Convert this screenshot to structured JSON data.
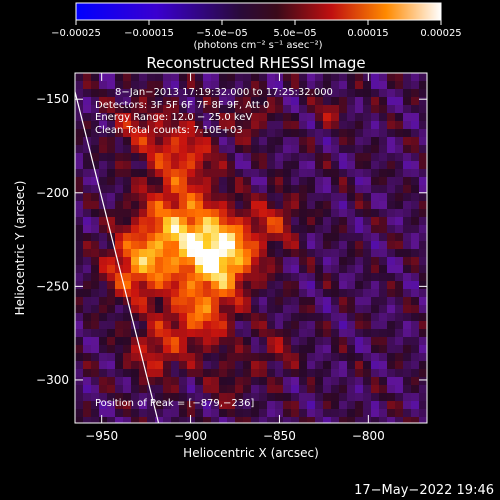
{
  "chart_data": {
    "type": "heatmap",
    "title": "Reconstructed RHESSI Image",
    "xlabel": "Heliocentric X (arcsec)",
    "ylabel": "Heliocentric Y (arcsec)",
    "xlim": [
      -965,
      -767
    ],
    "ylim": [
      -323,
      -136
    ],
    "x_ticks": [
      -950,
      -900,
      -850,
      -800
    ],
    "y_ticks": [
      -150,
      -200,
      -250,
      -300
    ],
    "x_tick_labels": [
      "−950",
      "−900",
      "−850",
      "−800"
    ],
    "y_tick_labels": [
      "−150",
      "−200",
      "−250",
      "−300"
    ],
    "colorbar": {
      "range": [
        -0.00025,
        0.00025
      ],
      "ticks": [
        -0.00025,
        -0.00015,
        -5e-05,
        5e-05,
        0.00015,
        0.00025
      ],
      "tick_labels": [
        "−0.00025",
        "−0.00015",
        "−5.0e−05",
        "5.0e−05",
        "0.00015",
        "0.00025"
      ],
      "unit_label": "(photons cm⁻² s⁻¹ asec⁻²)"
    },
    "annotations": [
      "8−Jan−2013 17:19:32.000 to 17:25:32.000",
      "Detectors: 3F 5F 6F 7F 8F 9F, Att 0",
      "Energy Range: 12.0 − 25.0 keV",
      "Clean     Total counts: 7.10E+03"
    ],
    "peak_label": "Position of Peak = [−879,−236]",
    "peak_position": [
      -879,
      -236
    ],
    "limb_line": [
      [
        -965,
        -146
      ],
      [
        -918,
        -323
      ]
    ],
    "sources": [
      {
        "x": -883,
        "y": -233,
        "amplitude": 0.00025,
        "sigma": 14
      },
      {
        "x": -908,
        "y": -218,
        "amplitude": 0.00017,
        "sigma": 16
      },
      {
        "x": -930,
        "y": -240,
        "amplitude": 0.00016,
        "sigma": 13
      },
      {
        "x": -905,
        "y": -180,
        "amplitude": 0.00012,
        "sigma": 13
      },
      {
        "x": -895,
        "y": -265,
        "amplitude": 0.00014,
        "sigma": 13
      },
      {
        "x": -920,
        "y": -285,
        "amplitude": 0.0001,
        "sigma": 11
      },
      {
        "x": -852,
        "y": -215,
        "amplitude": 9e-05,
        "sigma": 10
      },
      {
        "x": -930,
        "y": -165,
        "amplitude": 8e-05,
        "sigma": 11
      },
      {
        "x": -866,
        "y": -160,
        "amplitude": 7e-05,
        "sigma": 8
      },
      {
        "x": -822,
        "y": -157,
        "amplitude": 7e-05,
        "sigma": 6
      },
      {
        "x": -852,
        "y": -285,
        "amplitude": 6e-05,
        "sigma": 9
      },
      {
        "x": -878,
        "y": -302,
        "amplitude": 5e-05,
        "sigma": 9
      }
    ]
  },
  "footer": {
    "timestamp": "17−May−2022 19:46"
  }
}
